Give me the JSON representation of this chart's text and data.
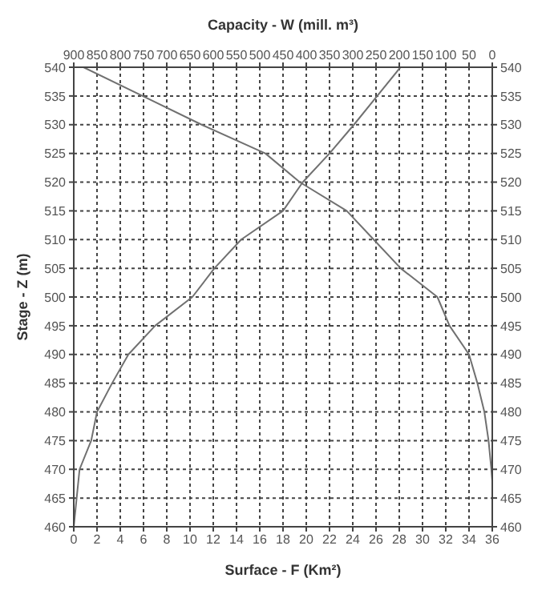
{
  "chart_data": {
    "type": "line",
    "xlabel": "Surface - F (Km²)",
    "x2label": "Capacity - W (mill. m³)",
    "ylabel": "Stage - Z (m)",
    "xlim": [
      0,
      36
    ],
    "xticks": [
      0,
      2,
      4,
      6,
      8,
      10,
      12,
      14,
      16,
      18,
      20,
      22,
      24,
      26,
      28,
      30,
      32,
      34,
      36
    ],
    "x2lim": [
      900,
      0
    ],
    "x2ticks": [
      900,
      850,
      800,
      750,
      700,
      650,
      600,
      550,
      500,
      450,
      400,
      350,
      300,
      250,
      200,
      150,
      100,
      50,
      0
    ],
    "ylim": [
      460,
      540
    ],
    "yticks": [
      460,
      465,
      470,
      475,
      480,
      485,
      490,
      495,
      500,
      505,
      510,
      515,
      520,
      525,
      530,
      535,
      540
    ],
    "y2lim": [
      460,
      540
    ],
    "y2ticks": [
      460,
      465,
      470,
      475,
      480,
      485,
      490,
      495,
      500,
      505,
      510,
      515,
      520,
      525,
      530,
      535,
      540
    ],
    "grid": true,
    "legend": false,
    "marker": "none",
    "line_style": "solid",
    "series": [
      {
        "color": "#707070",
        "x": [
          0,
          0.5,
          1.5,
          2,
          3.3,
          4.7,
          7,
          10.2,
          12.1,
          14.4,
          18,
          19.7,
          22,
          24.1,
          26.1,
          28.1
        ],
        "values": [
          460,
          470,
          475,
          480,
          485,
          490,
          495,
          500,
          505,
          510,
          515,
          520,
          525,
          530,
          535,
          540
        ]
      },
      {
        "color": "#707070",
        "axis": "x2",
        "x": [
          0,
          2,
          8,
          17,
          32,
          50,
          92,
          118,
          197,
          255,
          313,
          414,
          488,
          625,
          752,
          879
        ],
        "values": [
          468,
          470,
          475,
          480,
          485,
          490,
          495,
          500,
          505,
          510,
          515,
          520,
          525,
          530,
          535,
          540
        ]
      }
    ]
  }
}
